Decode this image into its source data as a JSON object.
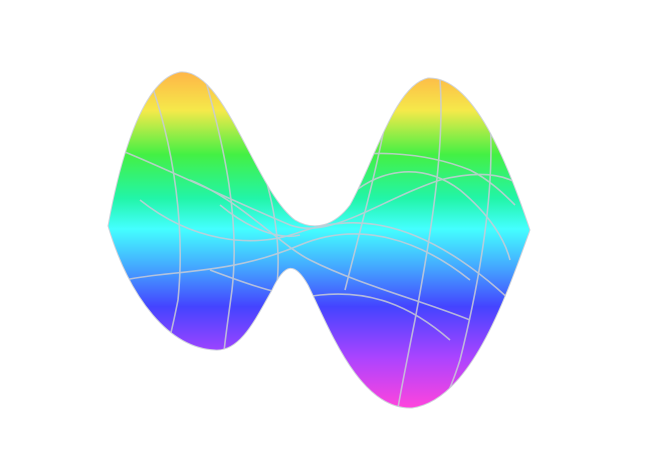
{
  "figure": {
    "subject": "saddle-surface",
    "shading": "rainbow-by-height",
    "gradient_stops": [
      {
        "offset": 0.0,
        "color": "#ffb347"
      },
      {
        "offset": 0.12,
        "color": "#f5e94a"
      },
      {
        "offset": 0.25,
        "color": "#44f044"
      },
      {
        "offset": 0.38,
        "color": "#22f5a8"
      },
      {
        "offset": 0.47,
        "color": "#44ffff"
      },
      {
        "offset": 0.58,
        "color": "#44aaff"
      },
      {
        "offset": 0.7,
        "color": "#4444ff"
      },
      {
        "offset": 0.85,
        "color": "#aa44ff"
      },
      {
        "offset": 1.0,
        "color": "#ff44dd"
      }
    ],
    "mesh_color": "#c8ccd6",
    "background": "#ffffff"
  }
}
